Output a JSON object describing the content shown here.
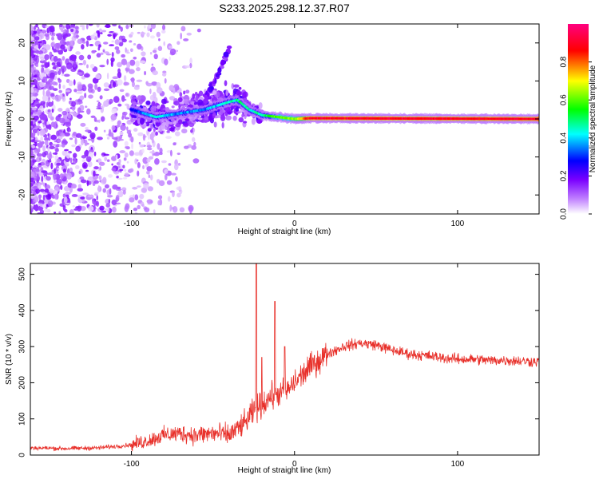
{
  "title": "S233.2025.298.12.37.R07",
  "chart_data": [
    {
      "type": "heatmap",
      "name": "spectrogram",
      "xlabel": "Height of straight line (km)",
      "ylabel": "Frequency (Hz)",
      "xlim": [
        -162,
        150
      ],
      "ylim": [
        -25,
        25
      ],
      "xticks": [
        -100,
        0,
        100
      ],
      "yticks": [
        -20,
        -10,
        0,
        10,
        20
      ],
      "colorbar": {
        "label": "Normalized spectral amplitude",
        "range": [
          0,
          1
        ],
        "ticks": [
          0.0,
          0.2,
          0.4,
          0.6,
          0.8
        ],
        "tick_labels": [
          "0.0",
          "0.2",
          "0.4",
          "0.6",
          "0.8"
        ],
        "colors": [
          "#ffffff",
          "#8000ff",
          "#0000ff",
          "#00ffff",
          "#00ff00",
          "#ffff00",
          "#ff0000",
          "#ff0080"
        ]
      },
      "ridge": [
        {
          "x": -100,
          "f": 2.5,
          "a": 0.25
        },
        {
          "x": -85,
          "f": 0.5,
          "a": 0.45
        },
        {
          "x": -70,
          "f": 1.5,
          "a": 0.35
        },
        {
          "x": -55,
          "f": 2.5,
          "a": 0.35
        },
        {
          "x": -40,
          "f": 4.5,
          "a": 0.45
        },
        {
          "x": -35,
          "f": 5,
          "a": 0.5
        },
        {
          "x": -28,
          "f": 2.5,
          "a": 0.45
        },
        {
          "x": -20,
          "f": 1,
          "a": 0.45
        },
        {
          "x": -10,
          "f": 0.5,
          "a": 0.6
        },
        {
          "x": 0,
          "f": 0,
          "a": 0.65
        },
        {
          "x": 10,
          "f": 0.2,
          "a": 0.9
        },
        {
          "x": 150,
          "f": 0,
          "a": 0.9
        }
      ]
    },
    {
      "type": "line",
      "name": "snr",
      "xlabel": "Height of straight line (km)",
      "ylabel": "SNR (10 * v/v)",
      "xlim": [
        -162,
        150
      ],
      "ylim": [
        0,
        530
      ],
      "xticks": [
        -100,
        0,
        100
      ],
      "yticks": [
        0,
        100,
        200,
        300,
        400,
        500
      ],
      "color": "#e8302a",
      "x": [
        -162,
        -140,
        -120,
        -100,
        -90,
        -80,
        -70,
        -60,
        -50,
        -40,
        -30,
        -25,
        -20,
        -15,
        -10,
        -5,
        0,
        10,
        20,
        30,
        40,
        50,
        60,
        70,
        80,
        90,
        100,
        110,
        120,
        130,
        140,
        150
      ],
      "y": [
        20,
        18,
        20,
        28,
        40,
        55,
        60,
        55,
        60,
        55,
        90,
        120,
        140,
        160,
        170,
        175,
        200,
        245,
        280,
        300,
        310,
        305,
        290,
        280,
        275,
        270,
        265,
        265,
        262,
        262,
        260,
        258
      ],
      "spikes": [
        {
          "x": -23.5,
          "y": 530
        },
        {
          "x": -12,
          "y": 425
        },
        {
          "x": -20,
          "y": 270
        },
        {
          "x": -6,
          "y": 300
        }
      ]
    }
  ]
}
